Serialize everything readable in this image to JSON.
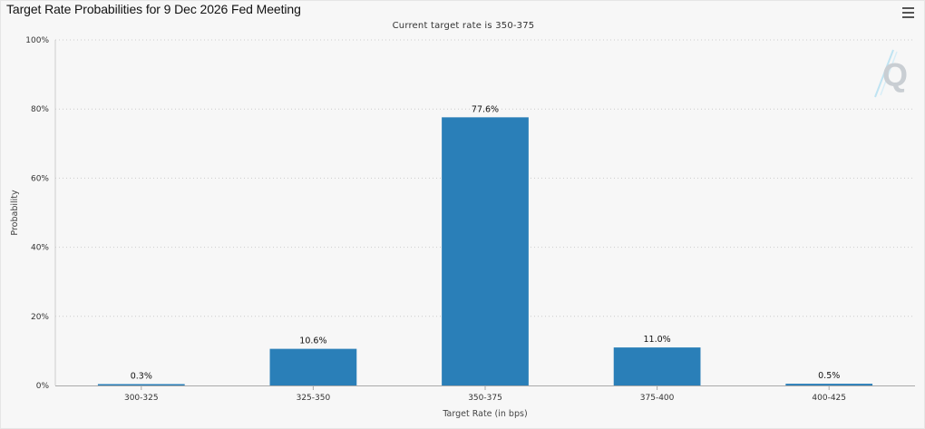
{
  "header": {
    "title": "Target Rate Probabilities for 9 Dec 2026 Fed Meeting",
    "subtitle": "Current target rate is 350-375",
    "menu_icon": "hamburger-menu-icon",
    "watermark_icon": "quikstrike-q-logo"
  },
  "colors": {
    "bar": "#2a7fb8",
    "grid": "#cccccc",
    "axis": "#aaaaaa",
    "background": "#f7f7f7"
  },
  "chart_data": {
    "type": "bar",
    "title": "Target Rate Probabilities for 9 Dec 2026 Fed Meeting",
    "subtitle": "Current target rate is 350-375",
    "categories": [
      "300-325",
      "325-350",
      "350-375",
      "375-400",
      "400-425"
    ],
    "values": [
      0.3,
      10.6,
      77.6,
      11.0,
      0.5
    ],
    "data_labels": [
      "0.3%",
      "10.6%",
      "77.6%",
      "11.0%",
      "0.5%"
    ],
    "xlabel": "Target Rate (in bps)",
    "ylabel": "Probability",
    "ylim": [
      0,
      100
    ],
    "yticks": [
      0,
      20,
      40,
      60,
      80,
      100
    ],
    "ytick_labels": [
      "0%",
      "20%",
      "40%",
      "60%",
      "80%",
      "100%"
    ],
    "grid": true,
    "legend": "none"
  }
}
